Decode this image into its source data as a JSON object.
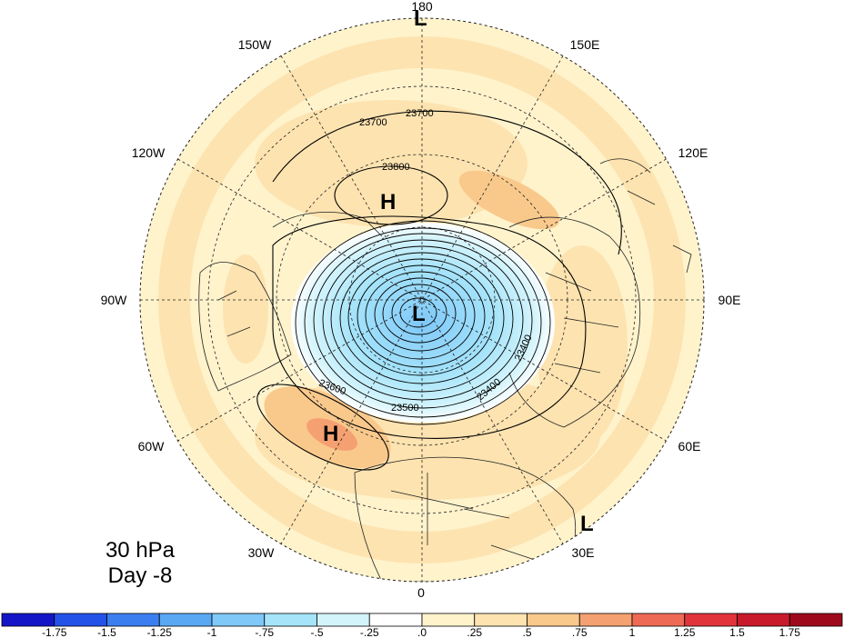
{
  "panel": {
    "level": "30 hPa",
    "day": "Day -8"
  },
  "longitudes": {
    "lon_180": "180",
    "lon_150w": "150W",
    "lon_150e": "150E",
    "lon_120w": "120W",
    "lon_120e": "120E",
    "lon_90w": "90W",
    "lon_90e": "90E",
    "lon_60w": "60W",
    "lon_60e": "60E",
    "lon_30w": "30W",
    "lon_30e": "30E",
    "lon_0": "0"
  },
  "pressure_centers": {
    "low_pole": "L",
    "low_top": "L",
    "low_bottom_right": "L",
    "high_pacific": "H",
    "high_atlantic": "H"
  },
  "contour_labels": {
    "c23700a": "23700",
    "c23700b": "23700",
    "c23800": "23800",
    "c23600": "23600",
    "c23500": "23500",
    "c23400": "23400",
    "c23400b": "23400"
  },
  "colorbar": {
    "labels": [
      "-1.75",
      "-1.5",
      "-1.25",
      "-1",
      "-.75",
      "-.5",
      "-.25",
      ".0",
      ".25",
      ".5",
      ".75",
      "1",
      "1.25",
      "1.5",
      "1.75"
    ],
    "colors": [
      "#1515c8",
      "#2352e8",
      "#3b7ef0",
      "#5aa8f4",
      "#7fc8f8",
      "#a6e4fa",
      "#d4f4fc",
      "#ffffff",
      "#fff3cc",
      "#fde3b0",
      "#f9c98c",
      "#f5a070",
      "#ee6a55",
      "#e0343a",
      "#c81a2a",
      "#9e0a1c"
    ]
  }
}
